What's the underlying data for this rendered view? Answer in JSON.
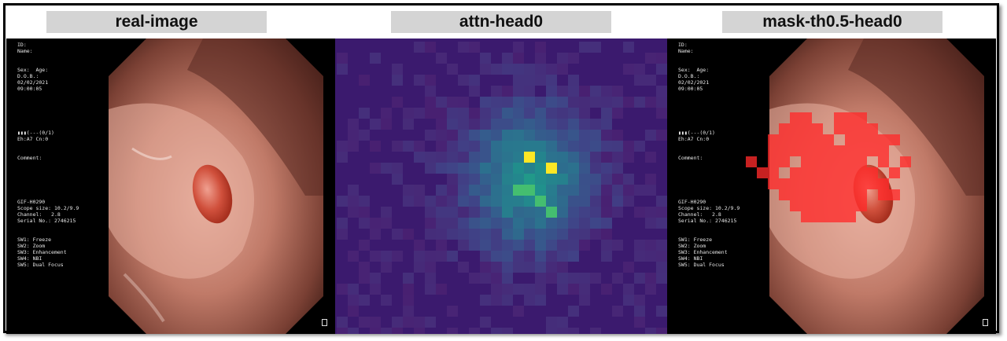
{
  "panels": [
    {
      "title": "real-image"
    },
    {
      "title": "attn-head0"
    },
    {
      "title": "mask-th0.5-head0"
    }
  ],
  "overlay": {
    "id_line": "ID:",
    "name_line": "Name:",
    "sex_age": "Sex:  Age:",
    "dob": "D.O.B.:",
    "date": "02/02/2021",
    "time": "09:00:05",
    "bar_line": "▮▮▮(---(0/1)",
    "eh_line": "Eh:A7 Cn:0",
    "comment": "Comment:",
    "model": "GIF-H0290",
    "scope": "Scope size: 10.2/9.9",
    "channel": "Channel:   2.8",
    "serial": "Serial No.: 2746215",
    "sw1": "SW1: Freeze",
    "sw2": "SW2: Zoom",
    "sw3": "SW3: Enhancement",
    "sw4": "SW4: NBI",
    "sw5": "SW5: Dual Focus"
  },
  "colors": {
    "heatmap_bg": "#3b1a6e",
    "mask": "#ff2a2a"
  }
}
